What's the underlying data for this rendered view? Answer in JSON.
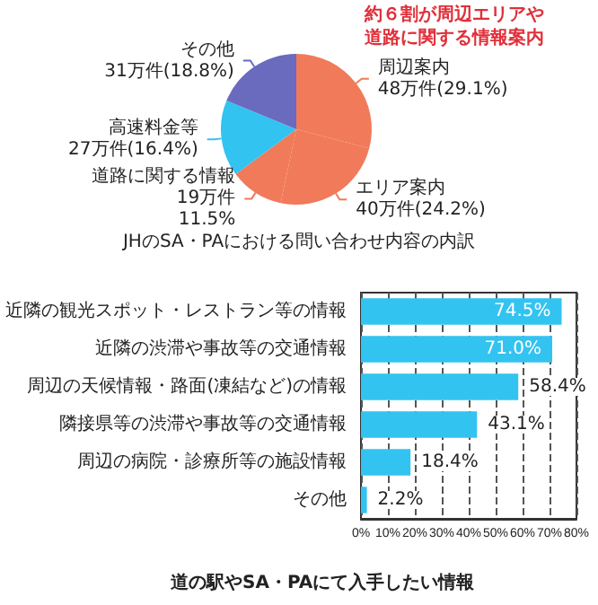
{
  "chart_data": [
    {
      "type": "pie",
      "title": "JHのSA・PAにおける問い合わせ内容の内訳",
      "categories": [
        "周辺案内",
        "エリア案内",
        "道路に関する情報",
        "高速料金等",
        "その他"
      ],
      "values": [
        48,
        40,
        19,
        27,
        31
      ],
      "value_labels": [
        "48万件(29.1%)",
        "40万件(24.2%)",
        "19万件\n11.5%",
        "27万件(16.4%)",
        "31万件(18.8%)"
      ],
      "colors": [
        "#f07a5a",
        "#f07a5a",
        "#f07a5a",
        "#33c3f0",
        "#6a6abf"
      ],
      "annotations": [
        "約６割が周辺エリアや道路に関する情報案内"
      ]
    },
    {
      "type": "bar",
      "orientation": "horizontal",
      "title": "道の駅やSA・PAにて入手したい情報",
      "categories": [
        "近隣の観光スポット・レストラン等の情報",
        "近隣の渋滞や事故等の交通情報",
        "周辺の天候情報・路面(凍結など)の情報",
        "隣接県等の渋滞や事故等の交通情報",
        "周辺の病院・診療所等の施設情報",
        "その他"
      ],
      "values": [
        74.5,
        71.0,
        58.4,
        43.1,
        18.4,
        2.2
      ],
      "value_labels": [
        "74.5%",
        "71.0%",
        "58.4%",
        "43.1%",
        "18.4%",
        "2.2%"
      ],
      "color": "#33c3f0",
      "xlim": [
        0,
        80
      ],
      "xticks": [
        {
          "value": 0,
          "label": "0%"
        },
        {
          "value": 10,
          "label": "10%"
        },
        {
          "value": 20,
          "label": "20%"
        },
        {
          "value": 30,
          "label": "30%"
        },
        {
          "value": 40,
          "label": "40%"
        },
        {
          "value": 50,
          "label": "50%"
        },
        {
          "value": 60,
          "label": "60%"
        },
        {
          "value": 70,
          "label": "70%"
        },
        {
          "value": 80,
          "label": "80%"
        }
      ],
      "grid": "x",
      "line_style": "dashed"
    }
  ]
}
